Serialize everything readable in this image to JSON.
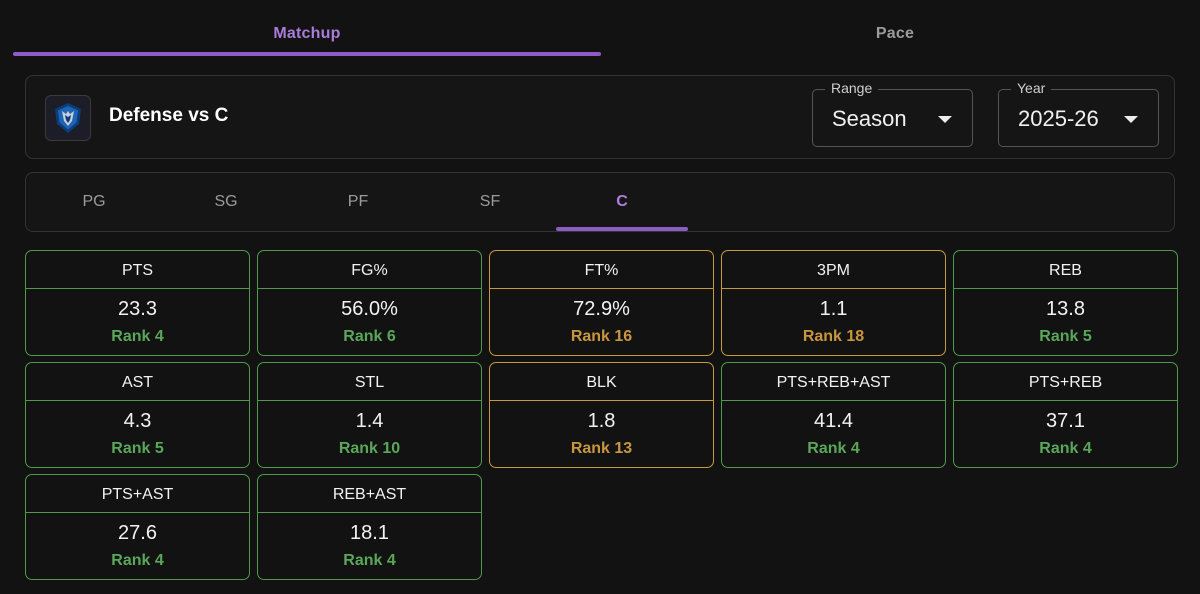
{
  "tabs": [
    {
      "label": "Matchup",
      "active": true
    },
    {
      "label": "Pace",
      "active": false
    }
  ],
  "header": {
    "title": "Defense vs C",
    "logo_icon": "dallas-mavericks-logo-icon",
    "range": {
      "label": "Range",
      "value": "Season"
    },
    "year": {
      "label": "Year",
      "value": "2025-26"
    }
  },
  "positions": [
    {
      "label": "PG",
      "active": false
    },
    {
      "label": "SG",
      "active": false
    },
    {
      "label": "PF",
      "active": false
    },
    {
      "label": "SF",
      "active": false
    },
    {
      "label": "C",
      "active": true
    }
  ],
  "colors": {
    "accent": "#8e5cc6",
    "good": "#4d9a4d",
    "mid": "#c69a3b"
  },
  "stats": [
    {
      "label": "PTS",
      "value": "23.3",
      "rank": "Rank 4",
      "tier": "good"
    },
    {
      "label": "FG%",
      "value": "56.0%",
      "rank": "Rank 6",
      "tier": "good"
    },
    {
      "label": "FT%",
      "value": "72.9%",
      "rank": "Rank 16",
      "tier": "mid"
    },
    {
      "label": "3PM",
      "value": "1.1",
      "rank": "Rank 18",
      "tier": "mid"
    },
    {
      "label": "REB",
      "value": "13.8",
      "rank": "Rank 5",
      "tier": "good"
    },
    {
      "label": "AST",
      "value": "4.3",
      "rank": "Rank 5",
      "tier": "good"
    },
    {
      "label": "STL",
      "value": "1.4",
      "rank": "Rank 10",
      "tier": "good"
    },
    {
      "label": "BLK",
      "value": "1.8",
      "rank": "Rank 13",
      "tier": "mid"
    },
    {
      "label": "PTS+REB+AST",
      "value": "41.4",
      "rank": "Rank 4",
      "tier": "good"
    },
    {
      "label": "PTS+REB",
      "value": "37.1",
      "rank": "Rank 4",
      "tier": "good"
    },
    {
      "label": "PTS+AST",
      "value": "27.6",
      "rank": "Rank 4",
      "tier": "good"
    },
    {
      "label": "REB+AST",
      "value": "18.1",
      "rank": "Rank 4",
      "tier": "good"
    }
  ]
}
